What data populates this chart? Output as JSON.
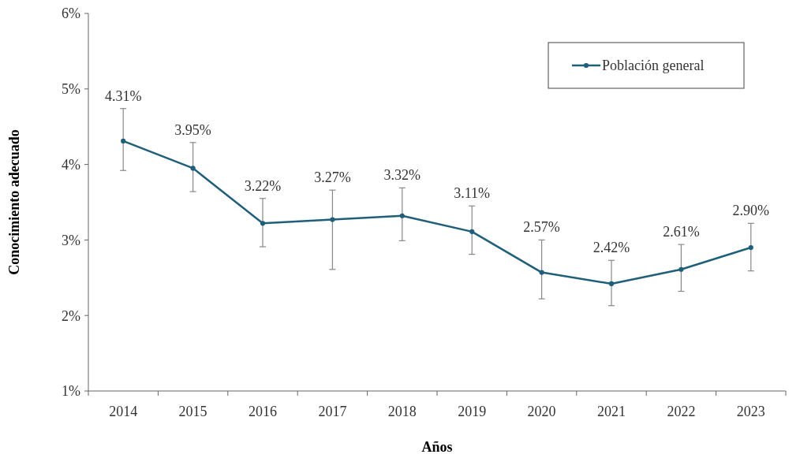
{
  "chart_data": {
    "type": "line",
    "xlabel": "Años",
    "ylabel": "Conocimiento adecuado",
    "categories": [
      "2014",
      "2015",
      "2016",
      "2017",
      "2018",
      "2019",
      "2020",
      "2021",
      "2022",
      "2023"
    ],
    "series": [
      {
        "name": "Población general",
        "color": "#1f5f7a",
        "values": [
          4.31,
          3.95,
          3.22,
          3.27,
          3.32,
          3.11,
          2.57,
          2.42,
          2.61,
          2.9
        ],
        "errors": [
          [
            3.92,
            4.74
          ],
          [
            3.64,
            4.29
          ],
          [
            2.91,
            3.55
          ],
          [
            2.61,
            3.66
          ],
          [
            2.99,
            3.69
          ],
          [
            2.81,
            3.45
          ],
          [
            2.22,
            3.0
          ],
          [
            2.13,
            2.73
          ],
          [
            2.32,
            2.94
          ],
          [
            2.59,
            3.22
          ]
        ],
        "value_labels": [
          "4.31%",
          "3.95%",
          "3.22%",
          "3.27%",
          "3.32%",
          "3.11%",
          "2.57%",
          "2.42%",
          "2.61%",
          "2.90%"
        ]
      }
    ],
    "ylim": [
      1,
      6
    ],
    "yticks": [
      {
        "value": 1,
        "label": "1%"
      },
      {
        "value": 2,
        "label": "2%"
      },
      {
        "value": 3,
        "label": "3%"
      },
      {
        "value": 4,
        "label": "4%"
      },
      {
        "value": 5,
        "label": "5%"
      },
      {
        "value": 6,
        "label": "6%"
      }
    ],
    "legend": "top right",
    "marker": "circle",
    "line_style": "solid",
    "grid": false
  }
}
